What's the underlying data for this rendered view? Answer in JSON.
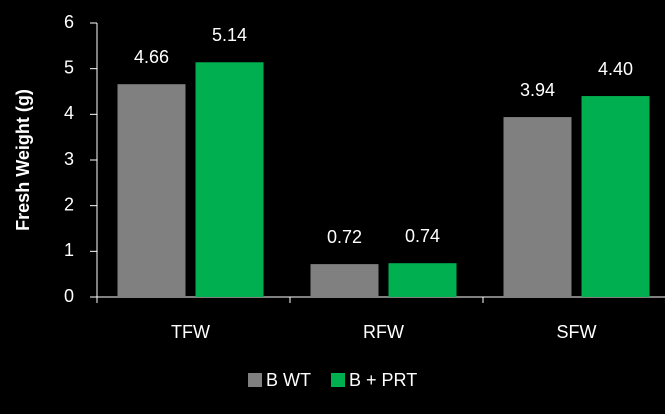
{
  "chart_data": {
    "type": "bar",
    "ylabel": "Fresh Weight (g)",
    "categories": [
      "TFW",
      "RFW",
      "SFW"
    ],
    "series": [
      {
        "name": "B WT",
        "color": "#808080",
        "values": [
          4.66,
          0.72,
          3.94
        ],
        "value_labels": [
          "4.66",
          "0.72",
          "3.94"
        ]
      },
      {
        "name": "B + PRT",
        "color": "#00b050",
        "values": [
          5.14,
          0.74,
          4.4
        ],
        "value_labels": [
          "5.14",
          "0.74",
          "4.40"
        ]
      }
    ],
    "ylim": [
      0,
      6
    ],
    "yticks": [
      0,
      1,
      2,
      3,
      4,
      5,
      6
    ],
    "grid": false,
    "legend": "bottom"
  }
}
